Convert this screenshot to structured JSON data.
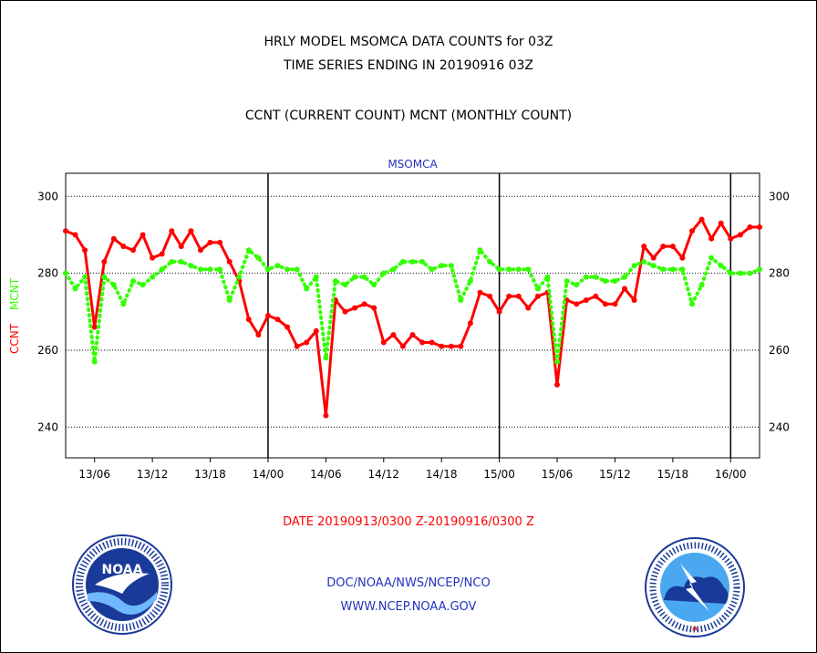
{
  "header": {
    "line1": "HRLY MODEL MSOMCA DATA COUNTS for 03Z",
    "line2": "TIME SERIES ENDING IN 20190916 03Z",
    "line3": "CCNT (CURRENT COUNT) MCNT (MONTHLY COUNT)"
  },
  "chart_data": {
    "type": "line",
    "title": "MSOMCA",
    "ylabel_ccnt": "CCNT",
    "ylabel_mcnt": "MCNT",
    "ylim": [
      232,
      306
    ],
    "yticks": [
      240,
      260,
      280,
      300
    ],
    "xlabel": "DATE 20190913/0300 Z-20190916/0300 Z",
    "x_hours_range": [
      3,
      75
    ],
    "xtick_labels": [
      {
        "hour": 6,
        "label": "13/06"
      },
      {
        "hour": 12,
        "label": "13/12"
      },
      {
        "hour": 18,
        "label": "13/18"
      },
      {
        "hour": 24,
        "label": "14/00"
      },
      {
        "hour": 30,
        "label": "14/06"
      },
      {
        "hour": 36,
        "label": "14/12"
      },
      {
        "hour": 42,
        "label": "14/18"
      },
      {
        "hour": 48,
        "label": "15/00"
      },
      {
        "hour": 54,
        "label": "15/06"
      },
      {
        "hour": 60,
        "label": "15/12"
      },
      {
        "hour": 66,
        "label": "15/18"
      },
      {
        "hour": 72,
        "label": "16/00"
      }
    ],
    "day_boundaries": [
      24,
      48,
      72
    ],
    "grid": "horizontal dotted",
    "series": [
      {
        "name": "CCNT",
        "color": "#ff0000",
        "style": "solid",
        "values": [
          291,
          290,
          286,
          266,
          283,
          289,
          287,
          286,
          290,
          284,
          285,
          291,
          287,
          291,
          286,
          288,
          288,
          283,
          278,
          268,
          264,
          269,
          268,
          266,
          261,
          262,
          265,
          243,
          273,
          270,
          271,
          272,
          271,
          262,
          264,
          261,
          264,
          262,
          262,
          261,
          261,
          261,
          267,
          275,
          274,
          270,
          274,
          274,
          271,
          274,
          275,
          251,
          273,
          272,
          273,
          274,
          272,
          272,
          276,
          273,
          287,
          284,
          287,
          287,
          284,
          291,
          294,
          289,
          293,
          289,
          290,
          292,
          292
        ]
      },
      {
        "name": "MCNT",
        "color": "#33ff00",
        "style": "dotted",
        "values": [
          280,
          276,
          279,
          257,
          279,
          277,
          272,
          278,
          277,
          279,
          281,
          283,
          283,
          282,
          281,
          281,
          281,
          273,
          279,
          286,
          284,
          281,
          282,
          281,
          281,
          276,
          279,
          258,
          278,
          277,
          279,
          279,
          277,
          280,
          281,
          283,
          283,
          283,
          281,
          282,
          282,
          273,
          278,
          286,
          283,
          281,
          281,
          281,
          281,
          276,
          279,
          257,
          278,
          277,
          279,
          279,
          278,
          278,
          279,
          282,
          283,
          282,
          281,
          281,
          281,
          272,
          277,
          284,
          282,
          280,
          280,
          280,
          281
        ]
      }
    ]
  },
  "footer": {
    "line1": "DOC/NOAA/NWS/NCEP/NCO",
    "line2": "WWW.NCEP.NOAA.GOV"
  },
  "logos": {
    "left": {
      "name": "noaa-logo",
      "text": "NOAA"
    },
    "right": {
      "name": "nws-logo"
    }
  },
  "colors": {
    "ccnt": "#ff0000",
    "mcnt": "#33ff00",
    "title_blue": "#2233bb",
    "footer_blue": "#2233bb",
    "date_red": "#ff0000"
  }
}
